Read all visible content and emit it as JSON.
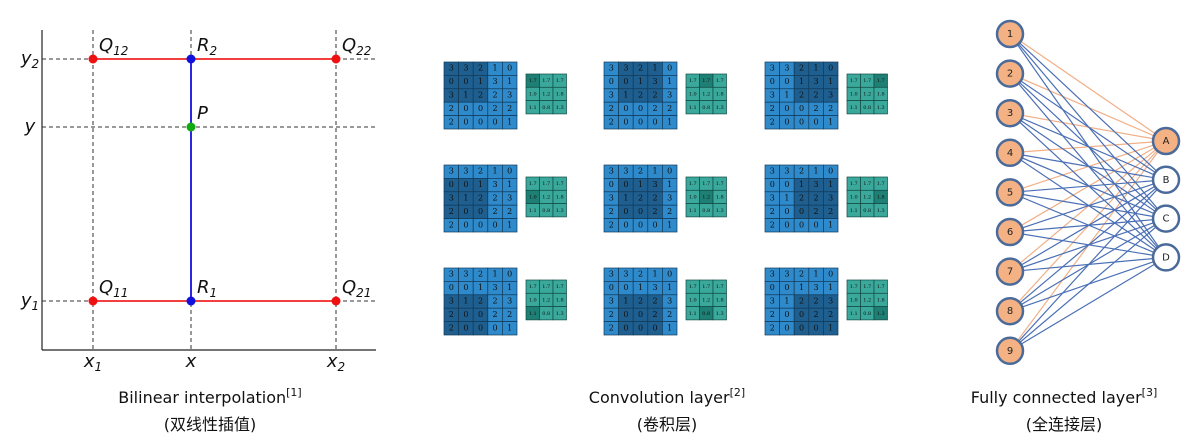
{
  "bilinear": {
    "y_labels": [
      {
        "text": "y",
        "sub": "2"
      },
      {
        "text": "y"
      },
      {
        "text": "y",
        "sub": "1"
      }
    ],
    "x_labels": [
      {
        "text": "x",
        "sub": "1"
      },
      {
        "text": "x"
      },
      {
        "text": "x",
        "sub": "2"
      }
    ],
    "points": [
      {
        "text": "Q",
        "sub": "12"
      },
      {
        "text": "R",
        "sub": "2"
      },
      {
        "text": "Q",
        "sub": "22"
      },
      {
        "text": "P"
      },
      {
        "text": "Q",
        "sub": "11"
      },
      {
        "text": "R",
        "sub": "1"
      },
      {
        "text": "Q",
        "sub": "21"
      }
    ],
    "caption": "Bilinear interpolation",
    "ref": "[1]",
    "subtitle": "(双线性插值)"
  },
  "convolution": {
    "input": [
      [
        3,
        3,
        2,
        1,
        0
      ],
      [
        0,
        0,
        1,
        3,
        1
      ],
      [
        3,
        1,
        2,
        2,
        3
      ],
      [
        2,
        0,
        0,
        2,
        2
      ],
      [
        2,
        0,
        0,
        0,
        1
      ]
    ],
    "output": [
      [
        "1.7",
        "1.7",
        "1.7"
      ],
      [
        "1.0",
        "1.2",
        "1.8"
      ],
      [
        "1.1",
        "0.8",
        "1.3"
      ]
    ],
    "caption": "Convolution layer",
    "ref": "[2]",
    "subtitle": "(卷积层)"
  },
  "fully_connected": {
    "inputs": [
      "1",
      "2",
      "3",
      "4",
      "5",
      "6",
      "7",
      "8",
      "9"
    ],
    "outputs": [
      "A",
      "B",
      "C",
      "D"
    ],
    "caption": "Fully connected layer",
    "ref": "[3]",
    "subtitle": "(全连接层)"
  }
}
